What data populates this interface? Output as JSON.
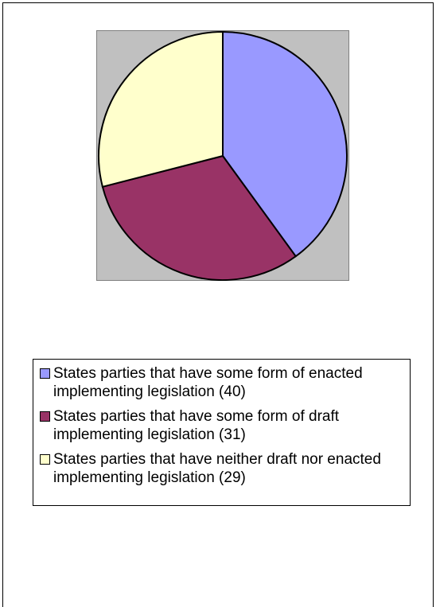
{
  "chart_data": {
    "type": "pie",
    "title": "",
    "slices": [
      {
        "label": "States parties that have some form of enacted implementing legislation (40)",
        "value": 40,
        "color": "#9999ff"
      },
      {
        "label": "States parties that have some form of draft implementing legislation (31)",
        "value": 31,
        "color": "#993366"
      },
      {
        "label": "States parties that have neither draft nor enacted implementing legislation (29)",
        "value": 29,
        "color": "#ffffcc"
      }
    ],
    "legend_placement": "bottom",
    "plot_background": "#c0c0c0"
  }
}
